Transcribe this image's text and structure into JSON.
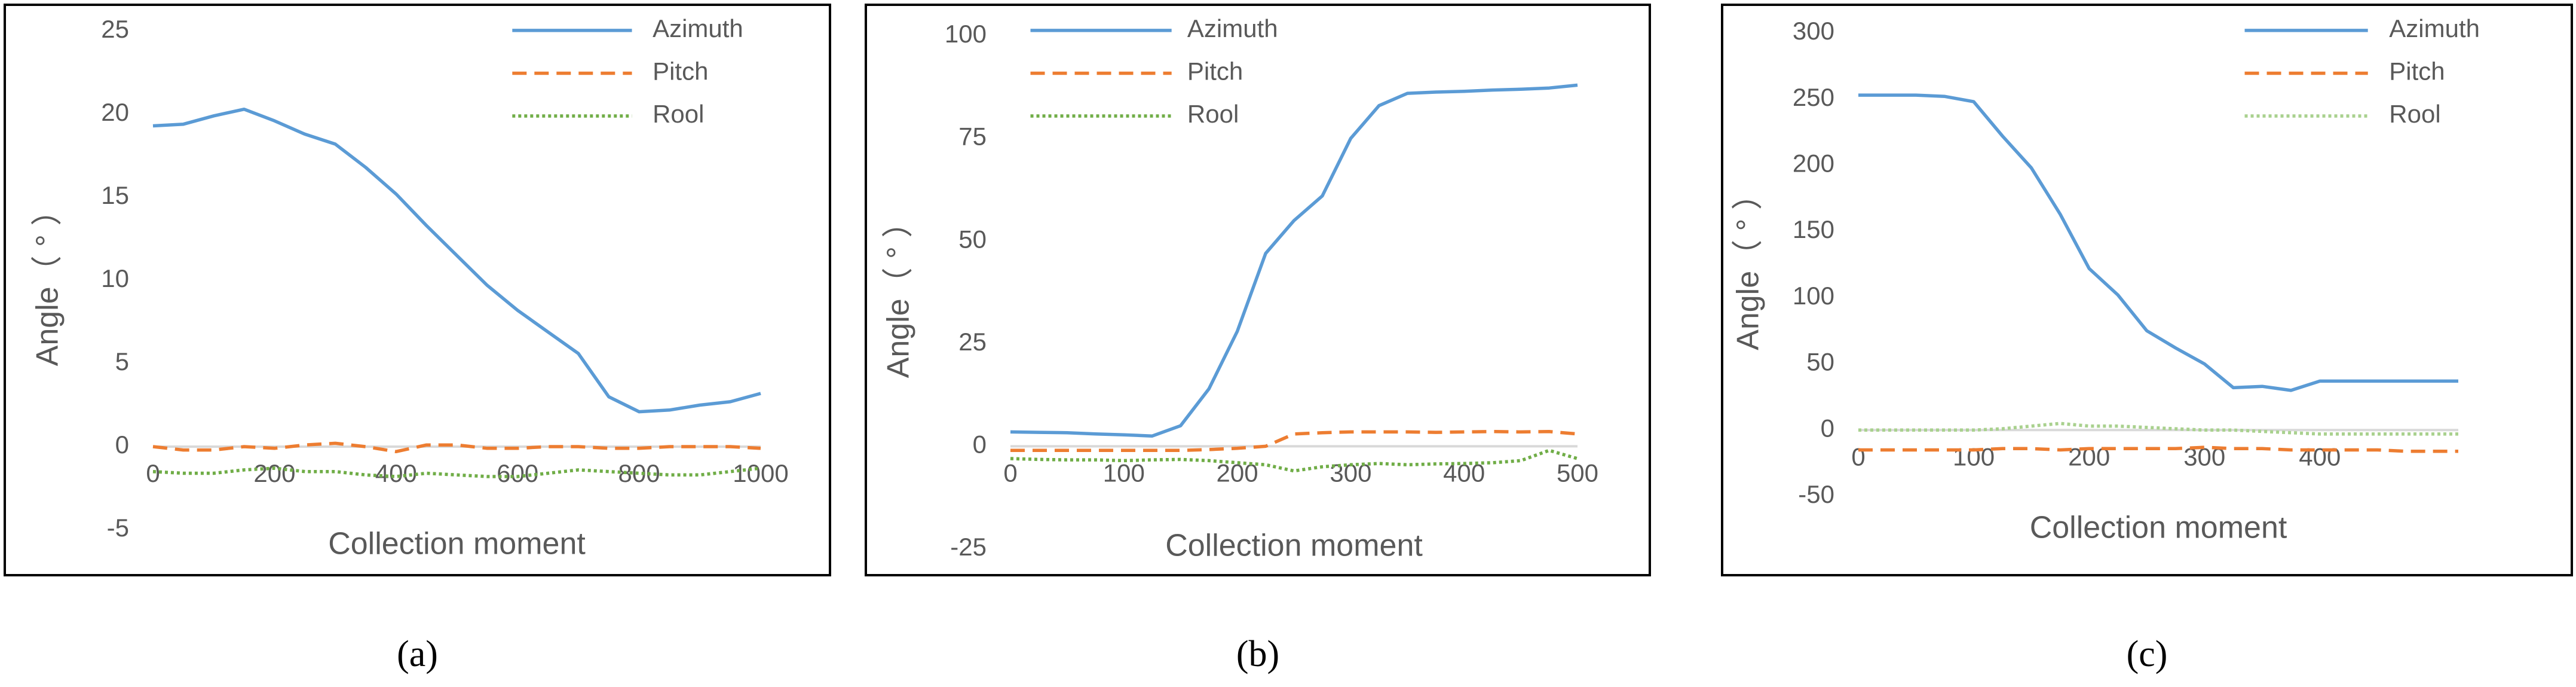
{
  "chart_data": [
    {
      "type": "line",
      "caption": "(a)",
      "xlabel": "Collection moment",
      "ylabel": "Angle（ ° ）",
      "legend": "upper right",
      "x": [
        0,
        50,
        100,
        150,
        200,
        250,
        300,
        350,
        400,
        450,
        500,
        550,
        600,
        650,
        700,
        750,
        800,
        850,
        900,
        950,
        1000
      ],
      "xlim": [
        0,
        1000
      ],
      "xticks": [
        0,
        200,
        400,
        600,
        800,
        1000
      ],
      "ylim": [
        -5,
        25
      ],
      "yticks": [
        -5,
        0,
        5,
        10,
        15,
        20,
        25
      ],
      "series": [
        {
          "name": "Azimuth",
          "color": "#5b9bd5",
          "linestyle": "solid",
          "values": [
            19.3,
            19.4,
            19.9,
            20.3,
            19.6,
            18.8,
            18.2,
            16.8,
            15.2,
            13.3,
            11.5,
            9.7,
            8.2,
            6.9,
            5.6,
            3.0,
            2.1,
            2.2,
            2.5,
            2.7,
            3.2
          ]
        },
        {
          "name": "Pitch",
          "color": "#ed7d31",
          "linestyle": "dashed",
          "values": [
            0,
            -0.2,
            -0.2,
            0,
            -0.1,
            0.1,
            0.2,
            0,
            -0.3,
            0.1,
            0.1,
            -0.1,
            -0.1,
            0,
            0,
            -0.1,
            -0.1,
            0,
            0,
            0,
            -0.1
          ]
        },
        {
          "name": "Rool",
          "color": "#70ad47",
          "linestyle": "dotted",
          "values": [
            -1.5,
            -1.6,
            -1.6,
            -1.4,
            -1.3,
            -1.5,
            -1.5,
            -1.7,
            -1.8,
            -1.6,
            -1.7,
            -1.8,
            -1.8,
            -1.6,
            -1.4,
            -1.5,
            -1.6,
            -1.7,
            -1.7,
            -1.5,
            -1.3
          ]
        }
      ]
    },
    {
      "type": "line",
      "caption": "(b)",
      "xlabel": "Collection moment",
      "ylabel": "Angle（ ° ）",
      "legend": "upper left",
      "x": [
        0,
        25,
        50,
        75,
        100,
        125,
        150,
        175,
        200,
        225,
        250,
        275,
        300,
        325,
        350,
        375,
        400,
        425,
        450,
        475,
        500
      ],
      "xlim": [
        0,
        500
      ],
      "xticks": [
        0,
        100,
        200,
        300,
        400,
        500
      ],
      "ylim": [
        -25,
        100
      ],
      "yticks": [
        -25,
        0,
        25,
        50,
        75,
        100
      ],
      "series": [
        {
          "name": "Azimuth",
          "color": "#5b9bd5",
          "linestyle": "solid",
          "values": [
            3.5,
            3.4,
            3.3,
            3.0,
            2.8,
            2.5,
            5,
            14,
            28,
            47,
            55,
            61,
            75,
            83,
            86,
            86.3,
            86.5,
            86.8,
            87,
            87.3,
            88
          ]
        },
        {
          "name": "Pitch",
          "color": "#ed7d31",
          "linestyle": "dashed",
          "values": [
            -1,
            -1,
            -1,
            -1,
            -1,
            -1,
            -1,
            -0.8,
            -0.5,
            0,
            3,
            3.3,
            3.5,
            3.5,
            3.5,
            3.4,
            3.5,
            3.6,
            3.5,
            3.6,
            3
          ]
        },
        {
          "name": "Rool",
          "color": "#70ad47",
          "linestyle": "dotted",
          "values": [
            -3,
            -3.2,
            -3.3,
            -3.3,
            -3.5,
            -3.3,
            -3.2,
            -3.5,
            -4,
            -4.5,
            -6,
            -5,
            -4.5,
            -4.2,
            -4.5,
            -4.3,
            -4.2,
            -4,
            -3.5,
            -1,
            -3
          ]
        }
      ]
    },
    {
      "type": "line",
      "caption": "(c)",
      "xlabel": "Collection moment",
      "ylabel": "Angle（ ° ）",
      "legend": "upper right",
      "x": [
        0,
        25,
        50,
        75,
        100,
        125,
        150,
        175,
        200,
        225,
        250,
        275,
        300,
        325,
        350,
        375,
        400,
        425,
        450,
        475,
        500,
        520
      ],
      "xlim": [
        0,
        520
      ],
      "xticks": [
        0,
        100,
        200,
        300,
        400
      ],
      "ylim": [
        -50,
        300
      ],
      "yticks": [
        -50,
        0,
        50,
        100,
        150,
        200,
        250,
        300
      ],
      "series": [
        {
          "name": "Azimuth",
          "color": "#5b9bd5",
          "linestyle": "solid",
          "values": [
            253,
            253,
            253,
            252,
            248,
            222,
            198,
            163,
            122,
            102,
            75,
            62,
            50,
            32,
            33,
            30,
            37,
            37,
            37,
            37,
            37,
            37
          ]
        },
        {
          "name": "Pitch",
          "color": "#ed7d31",
          "linestyle": "dashed",
          "values": [
            -15,
            -15,
            -15,
            -15,
            -15,
            -14,
            -14,
            -15,
            -14,
            -14,
            -14,
            -14,
            -13,
            -14,
            -14,
            -15,
            -15,
            -15,
            -15,
            -16,
            -16,
            -16
          ]
        },
        {
          "name": "Rool",
          "color": "#a9d18e",
          "linestyle": "dotted",
          "values": [
            0,
            0,
            0,
            0,
            0,
            1,
            3,
            5,
            3,
            3,
            2,
            1,
            0,
            0,
            -1,
            -2,
            -3,
            -3,
            -3,
            -3,
            -3,
            -3
          ]
        }
      ]
    }
  ]
}
